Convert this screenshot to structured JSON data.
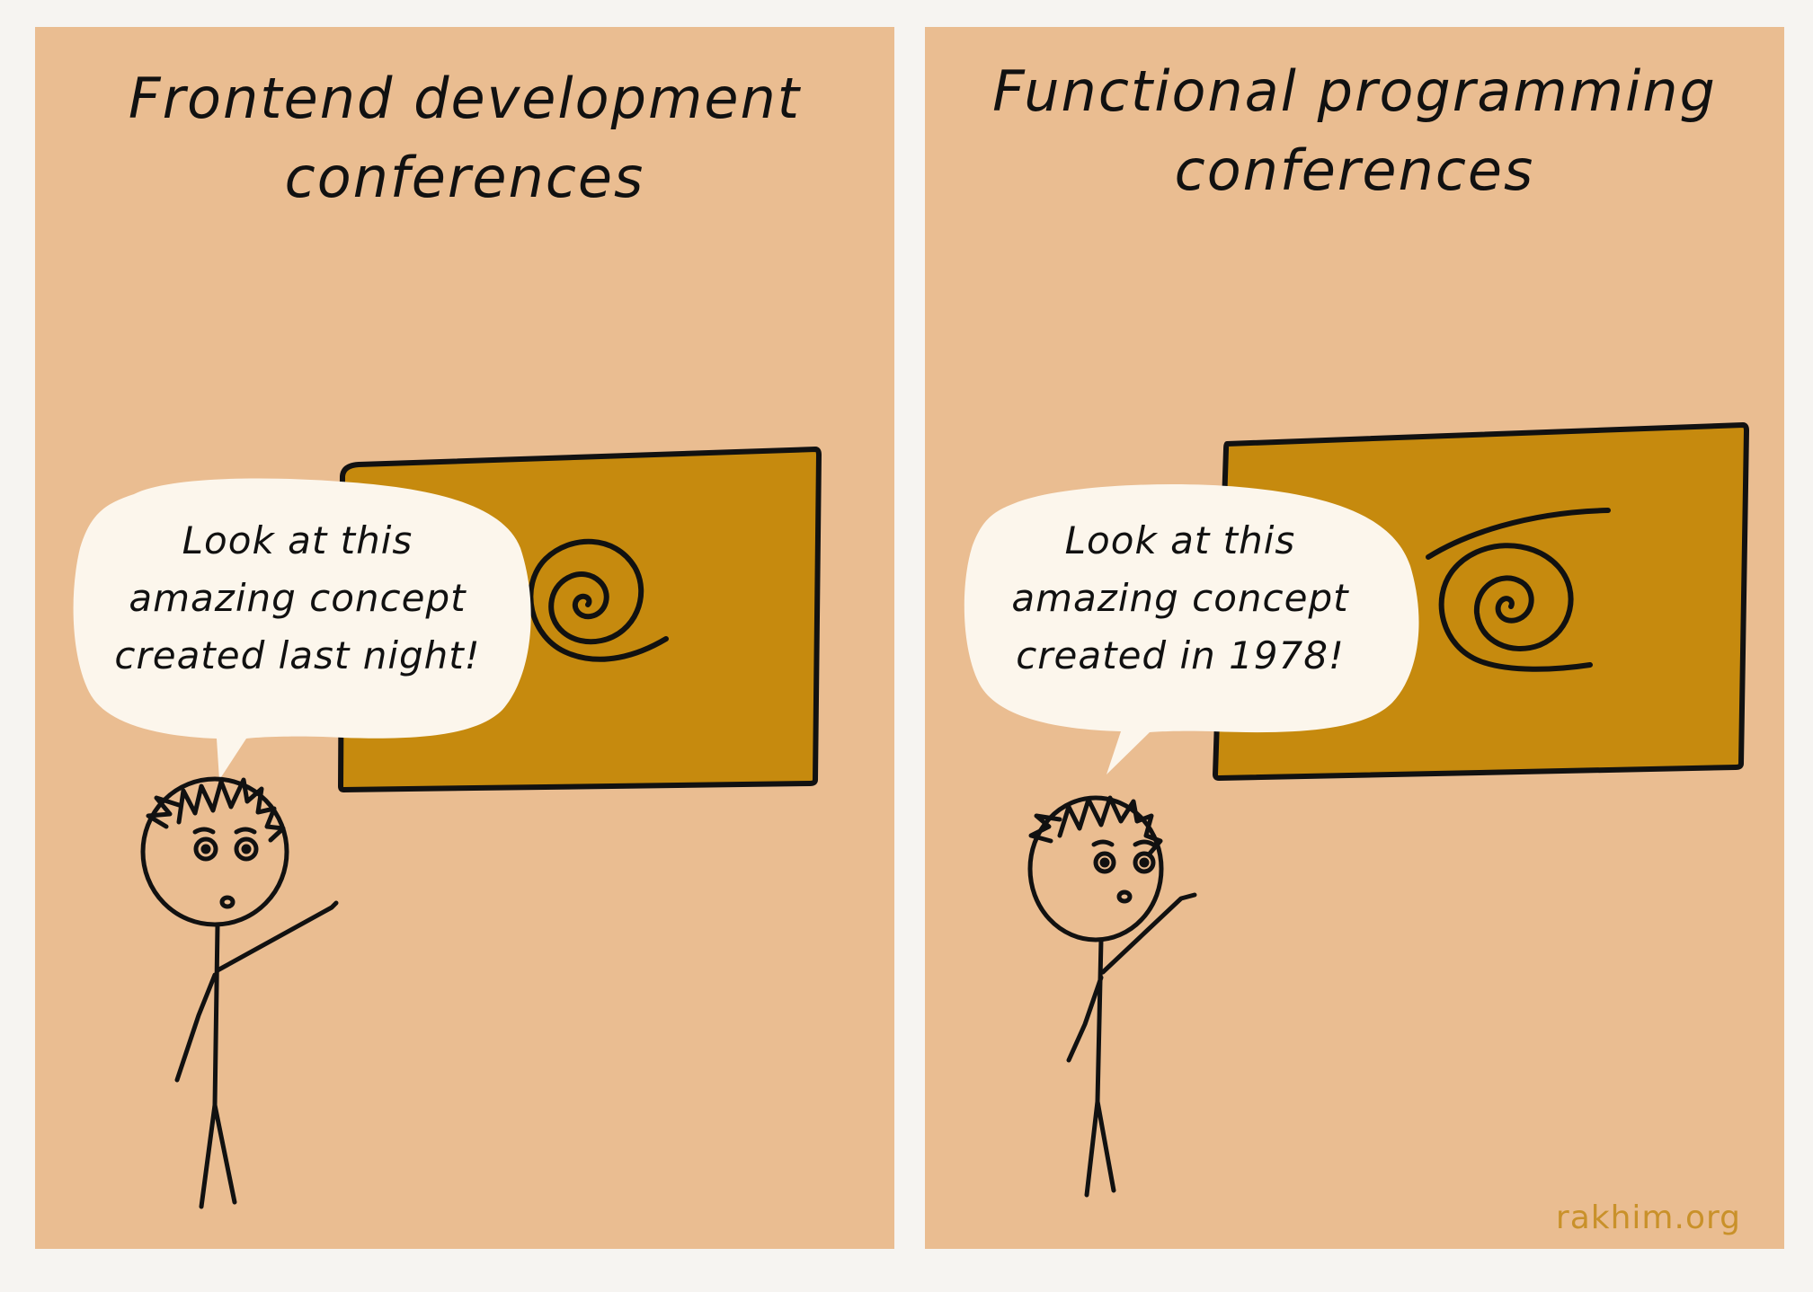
{
  "colors": {
    "page_background": "#f6f4f1",
    "panel_background": "#eabd91",
    "board_fill": "#c68a0e",
    "bubble_fill": "#fcf6ec",
    "ink": "#111111",
    "watermark": "#c9912a"
  },
  "panels": [
    {
      "title_line1": "Frontend development",
      "title_line2": "conferences",
      "speech_line1": "Look at this",
      "speech_line2": "amazing concept",
      "speech_line3": "created last night!",
      "icons": [
        "spiral-board-icon",
        "stick-figure-icon",
        "speech-bubble-icon"
      ]
    },
    {
      "title_line1": "Functional programming",
      "title_line2": "conferences",
      "speech_line1": "Look at this",
      "speech_line2": "amazing concept",
      "speech_line3": "created in 1978!",
      "icons": [
        "spiral-board-icon",
        "stick-figure-icon",
        "speech-bubble-icon"
      ]
    }
  ],
  "watermark": "rakhim.org"
}
